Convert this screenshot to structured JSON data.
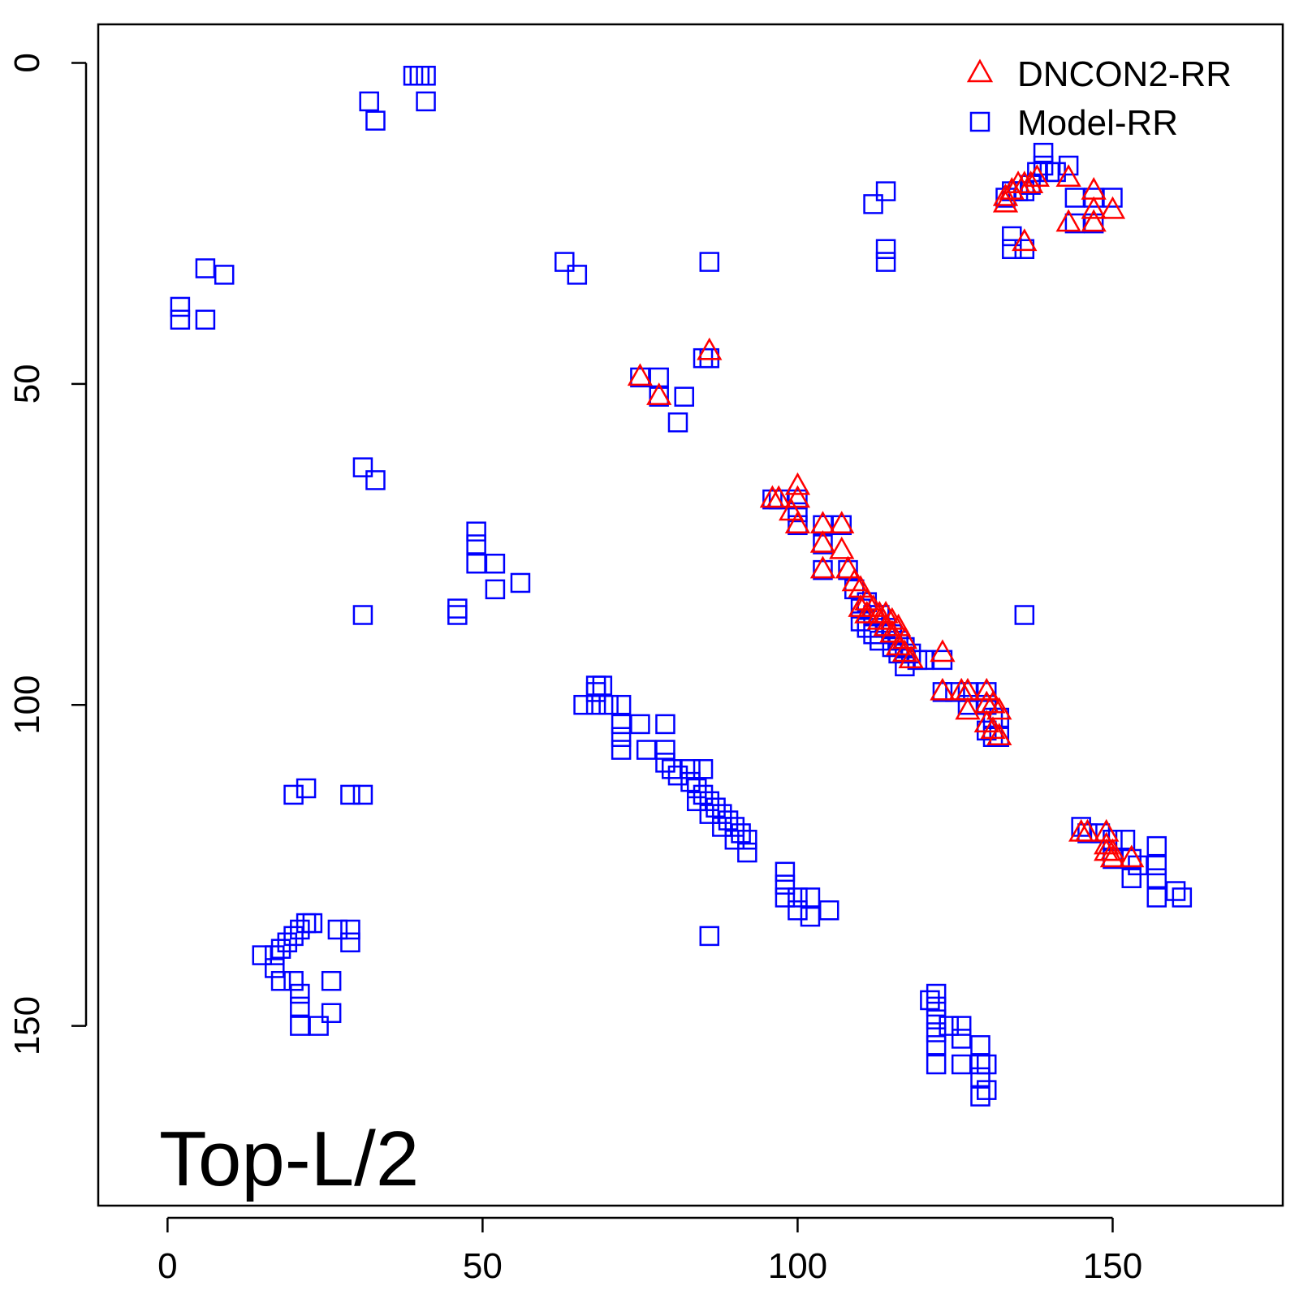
{
  "chart_data": {
    "type": "scatter",
    "title": "",
    "xlabel": "",
    "ylabel": "",
    "xlim": [
      -11,
      177
    ],
    "ylim": [
      -6,
      178
    ],
    "y_inverted": true,
    "grid": false,
    "legend_position": "top-right",
    "x_ticks": [
      0,
      50,
      100,
      150
    ],
    "x_tick_labels": [
      "0",
      "50",
      "100",
      "150"
    ],
    "y_ticks": [
      0,
      50,
      100,
      150
    ],
    "y_tick_labels": [
      "0",
      "50",
      "100",
      "150"
    ],
    "annotation": "Top-L/2",
    "series": [
      {
        "name": "DNCON2-RR",
        "marker": "triangle",
        "color": "#ff0000",
        "points": [
          [
            75,
            49
          ],
          [
            78,
            52
          ],
          [
            86,
            45
          ],
          [
            96,
            68
          ],
          [
            97,
            68
          ],
          [
            100,
            66
          ],
          [
            100,
            68
          ],
          [
            99,
            70
          ],
          [
            100,
            72
          ],
          [
            104,
            72
          ],
          [
            107,
            72
          ],
          [
            104,
            75
          ],
          [
            107,
            76
          ],
          [
            104,
            79
          ],
          [
            108,
            79
          ],
          [
            109,
            81
          ],
          [
            110,
            82
          ],
          [
            111,
            84
          ],
          [
            112,
            85
          ],
          [
            113,
            86
          ],
          [
            114,
            86
          ],
          [
            113,
            87
          ],
          [
            115,
            87
          ],
          [
            114,
            88
          ],
          [
            116,
            88
          ],
          [
            115,
            89
          ],
          [
            117,
            90
          ],
          [
            116,
            91
          ],
          [
            117,
            92
          ],
          [
            118,
            93
          ],
          [
            110,
            85
          ],
          [
            111,
            86
          ],
          [
            123,
            92
          ],
          [
            123,
            98
          ],
          [
            126,
            98
          ],
          [
            127,
            98
          ],
          [
            130,
            98
          ],
          [
            127,
            101
          ],
          [
            130,
            100
          ],
          [
            131,
            100
          ],
          [
            132,
            101
          ],
          [
            130,
            103
          ],
          [
            131,
            104
          ],
          [
            132,
            105
          ],
          [
            133,
            21
          ],
          [
            134,
            20
          ],
          [
            135,
            19
          ],
          [
            136,
            19
          ],
          [
            137,
            19
          ],
          [
            138,
            18
          ],
          [
            133,
            22
          ],
          [
            143,
            18
          ],
          [
            147,
            20
          ],
          [
            147,
            23
          ],
          [
            150,
            23
          ],
          [
            143,
            25
          ],
          [
            147,
            25
          ],
          [
            136,
            28
          ],
          [
            146,
            120
          ],
          [
            145,
            120
          ],
          [
            149,
            120
          ],
          [
            149,
            122
          ],
          [
            150,
            123
          ],
          [
            149,
            123
          ],
          [
            150,
            124
          ],
          [
            153,
            124
          ]
        ]
      },
      {
        "name": "Model-RR",
        "marker": "square",
        "color": "#0000ff",
        "points": [
          [
            39,
            2
          ],
          [
            41,
            2
          ],
          [
            40,
            2
          ],
          [
            32,
            6
          ],
          [
            33,
            9
          ],
          [
            41,
            6
          ],
          [
            6,
            32
          ],
          [
            9,
            33
          ],
          [
            2,
            38
          ],
          [
            2,
            40
          ],
          [
            6,
            40
          ],
          [
            63,
            31
          ],
          [
            65,
            33
          ],
          [
            86,
            31
          ],
          [
            75,
            49
          ],
          [
            78,
            49
          ],
          [
            78,
            52
          ],
          [
            82,
            52
          ],
          [
            81,
            56
          ],
          [
            85,
            46
          ],
          [
            86,
            46
          ],
          [
            31,
            63
          ],
          [
            33,
            65
          ],
          [
            49,
            73
          ],
          [
            49,
            75
          ],
          [
            49,
            78
          ],
          [
            52,
            78
          ],
          [
            52,
            82
          ],
          [
            56,
            81
          ],
          [
            46,
            85
          ],
          [
            46,
            86
          ],
          [
            31,
            86
          ],
          [
            112,
            22
          ],
          [
            114,
            20
          ],
          [
            114,
            29
          ],
          [
            114,
            31
          ],
          [
            133,
            21
          ],
          [
            134,
            20
          ],
          [
            135,
            20
          ],
          [
            136,
            20
          ],
          [
            137,
            19
          ],
          [
            138,
            17
          ],
          [
            139,
            16
          ],
          [
            140,
            17
          ],
          [
            141,
            17
          ],
          [
            143,
            16
          ],
          [
            144,
            21
          ],
          [
            147,
            21
          ],
          [
            150,
            21
          ],
          [
            144,
            25
          ],
          [
            147,
            25
          ],
          [
            134,
            27
          ],
          [
            134,
            29
          ],
          [
            136,
            29
          ],
          [
            139,
            14
          ],
          [
            96,
            68
          ],
          [
            97,
            68
          ],
          [
            100,
            68
          ],
          [
            100,
            70
          ],
          [
            104,
            72
          ],
          [
            107,
            72
          ],
          [
            100,
            72
          ],
          [
            104,
            75
          ],
          [
            104,
            79
          ],
          [
            108,
            79
          ],
          [
            109,
            82
          ],
          [
            110,
            85
          ],
          [
            111,
            84
          ],
          [
            112,
            86
          ],
          [
            113,
            86
          ],
          [
            114,
            88
          ],
          [
            115,
            89
          ],
          [
            116,
            90
          ],
          [
            117,
            91
          ],
          [
            118,
            92
          ],
          [
            119,
            93
          ],
          [
            120,
            93
          ],
          [
            110,
            87
          ],
          [
            111,
            88
          ],
          [
            112,
            89
          ],
          [
            113,
            90
          ],
          [
            115,
            91
          ],
          [
            116,
            92
          ],
          [
            117,
            94
          ],
          [
            123,
            93
          ],
          [
            136,
            86
          ],
          [
            123,
            98
          ],
          [
            125,
            98
          ],
          [
            127,
            98
          ],
          [
            130,
            98
          ],
          [
            127,
            100
          ],
          [
            130,
            100
          ],
          [
            131,
            102
          ],
          [
            132,
            102
          ],
          [
            130,
            104
          ],
          [
            131,
            105
          ],
          [
            132,
            105
          ],
          [
            66,
            100
          ],
          [
            68,
            98
          ],
          [
            68,
            97
          ],
          [
            69,
            97
          ],
          [
            68,
            100
          ],
          [
            70,
            100
          ],
          [
            72,
            100
          ],
          [
            72,
            103
          ],
          [
            72,
            105
          ],
          [
            75,
            103
          ],
          [
            72,
            107
          ],
          [
            76,
            107
          ],
          [
            79,
            103
          ],
          [
            79,
            107
          ],
          [
            79,
            109
          ],
          [
            80,
            110
          ],
          [
            81,
            111
          ],
          [
            83,
            110
          ],
          [
            85,
            110
          ],
          [
            83,
            112
          ],
          [
            84,
            113
          ],
          [
            85,
            114
          ],
          [
            86,
            115
          ],
          [
            87,
            116
          ],
          [
            88,
            117
          ],
          [
            89,
            118
          ],
          [
            90,
            119
          ],
          [
            91,
            120
          ],
          [
            92,
            121
          ],
          [
            92,
            123
          ],
          [
            84,
            115
          ],
          [
            86,
            117
          ],
          [
            88,
            119
          ],
          [
            90,
            121
          ],
          [
            98,
            126
          ],
          [
            98,
            128
          ],
          [
            98,
            130
          ],
          [
            100,
            130
          ],
          [
            102,
            130
          ],
          [
            100,
            132
          ],
          [
            102,
            133
          ],
          [
            105,
            132
          ],
          [
            20,
            114
          ],
          [
            22,
            113
          ],
          [
            29,
            114
          ],
          [
            31,
            114
          ],
          [
            22,
            134
          ],
          [
            23,
            134
          ],
          [
            21,
            135
          ],
          [
            20,
            136
          ],
          [
            19,
            137
          ],
          [
            18,
            138
          ],
          [
            17,
            139
          ],
          [
            15,
            139
          ],
          [
            17,
            141
          ],
          [
            18,
            143
          ],
          [
            20,
            143
          ],
          [
            21,
            145
          ],
          [
            21,
            147
          ],
          [
            21,
            150
          ],
          [
            24,
            150
          ],
          [
            26,
            143
          ],
          [
            26,
            148
          ],
          [
            27,
            135
          ],
          [
            29,
            135
          ],
          [
            29,
            137
          ],
          [
            86,
            136
          ],
          [
            145,
            119
          ],
          [
            146,
            120
          ],
          [
            148,
            120
          ],
          [
            150,
            121
          ],
          [
            152,
            121
          ],
          [
            150,
            124
          ],
          [
            153,
            124
          ],
          [
            154,
            125
          ],
          [
            153,
            127
          ],
          [
            157,
            122
          ],
          [
            157,
            125
          ],
          [
            157,
            127
          ],
          [
            157,
            130
          ],
          [
            160,
            129
          ],
          [
            161,
            130
          ],
          [
            121,
            146
          ],
          [
            122,
            145
          ],
          [
            122,
            147
          ],
          [
            122,
            149
          ],
          [
            122,
            151
          ],
          [
            122,
            153
          ],
          [
            124,
            150
          ],
          [
            126,
            150
          ],
          [
            126,
            152
          ],
          [
            129,
            153
          ],
          [
            122,
            156
          ],
          [
            126,
            156
          ],
          [
            129,
            156
          ],
          [
            130,
            156
          ],
          [
            129,
            158
          ],
          [
            130,
            160
          ],
          [
            129,
            161
          ]
        ]
      }
    ]
  }
}
